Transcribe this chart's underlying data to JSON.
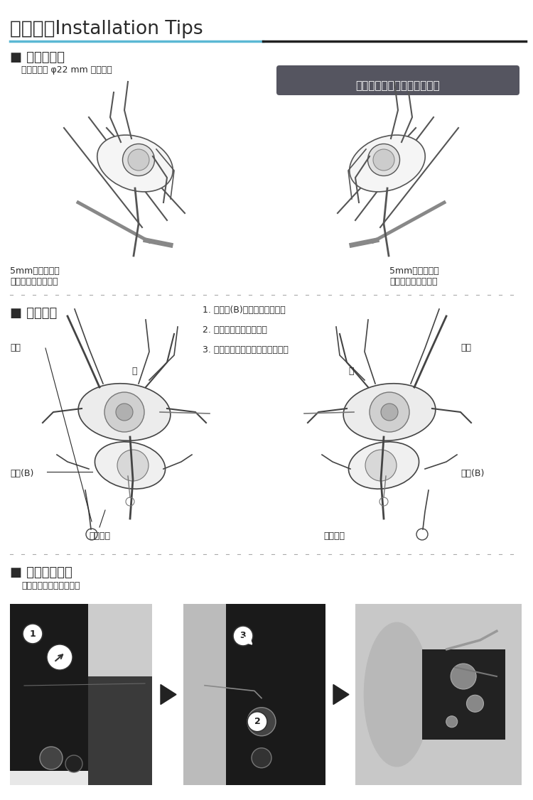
{
  "bg_color": "#ffffff",
  "title": "安装提示Installation Tips",
  "title_fontsize": 19,
  "title_color": "#2a2a2a",
  "header_line_color_left": "#5bb8d4",
  "header_line_color_right": "#222222",
  "section1_title": "■ 安装至车把",
  "section1_subtitle": "请使用外径 φ22 mm 的车把。",
  "badge_text": "山地车／用于公路车的平龙头",
  "badge_bg": "#555560",
  "badge_fg": "#ffffff",
  "label_left_bottom1": "5mm内六角扳手",
  "label_left_bottom2": "（扳手请另外购买）",
  "label_right_bottom1": "5mm内六角扳手",
  "label_right_bottom2": "（扳手请另外购买）",
  "section2_title": "■ 更换内线",
  "steps": [
    "1. 将手柄(B)设置在顶部位置。",
    "2. 拧开螺丝并拆下护盖。",
    "3. 拉出内线，然后安装新的内线。"
  ],
  "label_screw": "螺丝",
  "label_cover": "盖",
  "label_handle": "手柄(B)",
  "label_cable_left": "变速内线",
  "label_cable_right": "变速内线",
  "section3_title": "■ 刹车线的安装",
  "section3_subtitle": "＊请按照图示进行安装。",
  "text_color": "#2a2a2a",
  "font_size_section": 13,
  "font_size_label": 8,
  "font_size_step": 8,
  "font_size_badge": 11
}
